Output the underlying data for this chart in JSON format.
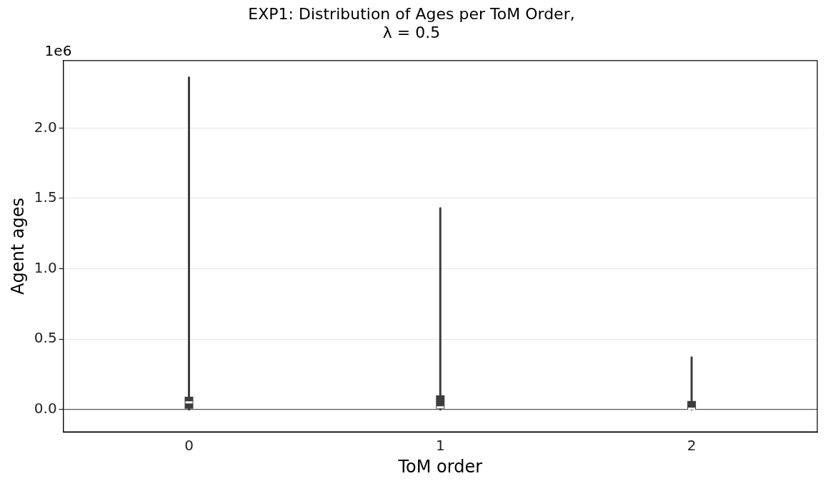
{
  "chart_data": {
    "type": "box",
    "title": "EXP1: Distribution of Ages per ToM Order,\nλ = 0.5",
    "xlabel": "ToM order",
    "ylabel": "Agent ages",
    "annotations": [
      "1e6"
    ],
    "categories": [
      "0",
      "1",
      "2"
    ],
    "color": "#3d3d3d",
    "boxes": [
      {
        "low": 0,
        "q1": 0.005,
        "median": 0.05,
        "q3": 0.09,
        "high": 2.36
      },
      {
        "low": 0,
        "q1": 0.005,
        "median": 0.015,
        "q3": 0.1,
        "high": 1.43
      },
      {
        "low": 0,
        "q1": 0.003,
        "median": 0.005,
        "q3": 0.06,
        "high": 0.37
      }
    ],
    "ylim": [
      -0.16,
      2.48
    ],
    "yticks": [
      {
        "value": 0,
        "label": "0.0"
      },
      0.5,
      {
        "value": 1,
        "label": "1.0"
      },
      1.5,
      {
        "value": 2,
        "label": "2.0"
      }
    ],
    "ref_lines": [
      {
        "axis": "y",
        "value": 0,
        "color": "#555555"
      }
    ],
    "grid": "y",
    "legend": false
  }
}
